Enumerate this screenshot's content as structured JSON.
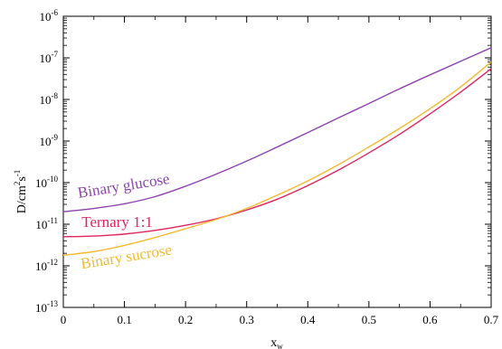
{
  "chart_data": {
    "type": "line",
    "title": "",
    "xlabel": "x",
    "xlabel_sub": "w",
    "ylabel": "D/cm",
    "ylabel_sup": "2",
    "ylabel_mid": "s",
    "ylabel_sup2": "-1",
    "xlim": [
      0,
      0.7
    ],
    "ylim_log10": [
      -13,
      -6
    ],
    "y_scale": "log",
    "grid": false,
    "x_ticks": [
      "0",
      "0.1",
      "0.2",
      "0.3",
      "0.4",
      "0.5",
      "0.6",
      "0.7"
    ],
    "y_ticks": [
      {
        "base": "10",
        "exp": "-6"
      },
      {
        "base": "10",
        "exp": "-7"
      },
      {
        "base": "10",
        "exp": "-8"
      },
      {
        "base": "10",
        "exp": "-9"
      },
      {
        "base": "10",
        "exp": "-10"
      },
      {
        "base": "10",
        "exp": "-11"
      },
      {
        "base": "10",
        "exp": "-12"
      },
      {
        "base": "10",
        "exp": "-13"
      }
    ],
    "y_tick_values": [
      -6,
      -7,
      -8,
      -9,
      -10,
      -11,
      -12,
      -13
    ],
    "x_tick_values": [
      0,
      0.1,
      0.2,
      0.3,
      0.4,
      0.5,
      0.6,
      0.7
    ],
    "series": [
      {
        "name": "Binary glucose",
        "color": "#8E44AD",
        "x": [
          0,
          0.05,
          0.1,
          0.15,
          0.2,
          0.25,
          0.3,
          0.35,
          0.4,
          0.45,
          0.5,
          0.55,
          0.6,
          0.65,
          0.7
        ],
        "y": [
          2e-11,
          2.4e-11,
          3.1e-11,
          4.6e-11,
          8.2e-11,
          1.6e-10,
          3.3e-10,
          7.2e-10,
          1.6e-09,
          3.6e-09,
          8e-09,
          1.8e-08,
          3.9e-08,
          8.3e-08,
          1.75e-07
        ]
      },
      {
        "name": "Ternary 1:1",
        "color": "#E0245E",
        "x": [
          0,
          0.05,
          0.1,
          0.15,
          0.2,
          0.25,
          0.3,
          0.35,
          0.4,
          0.45,
          0.5,
          0.55,
          0.6,
          0.65,
          0.7
        ],
        "y": [
          5e-12,
          5.2e-12,
          5.8e-12,
          7.1e-12,
          9.4e-12,
          1.35e-11,
          2.2e-11,
          4e-11,
          8.5e-11,
          2e-10,
          5.2e-10,
          1.45e-09,
          4.5e-09,
          1.5e-08,
          5.5e-08
        ]
      },
      {
        "name": "Binary sucrose",
        "color": "#F5B92E",
        "x": [
          0,
          0.05,
          0.1,
          0.15,
          0.2,
          0.25,
          0.3,
          0.35,
          0.4,
          0.45,
          0.5,
          0.55,
          0.6,
          0.65,
          0.7
        ],
        "y": [
          1.8e-12,
          2.2e-12,
          3.1e-12,
          4.8e-12,
          7.8e-12,
          1.3e-11,
          2.4e-11,
          5e-11,
          1.1e-10,
          2.7e-10,
          7.2e-10,
          2e-09,
          6e-09,
          2e-08,
          8e-08
        ]
      }
    ],
    "annotations": [
      {
        "text": "Binary glucose",
        "color": "#8E44AD",
        "x": 0.025,
        "y": 4.3e-11,
        "rotate": -9
      },
      {
        "text": "Ternary 1:1",
        "color": "#E0245E",
        "x": 0.03,
        "y": 8.5e-12,
        "rotate": 0
      },
      {
        "text": "Binary sucrose",
        "color": "#F5B92E",
        "x": 0.03,
        "y": 8.5e-13,
        "rotate": -9
      }
    ]
  }
}
